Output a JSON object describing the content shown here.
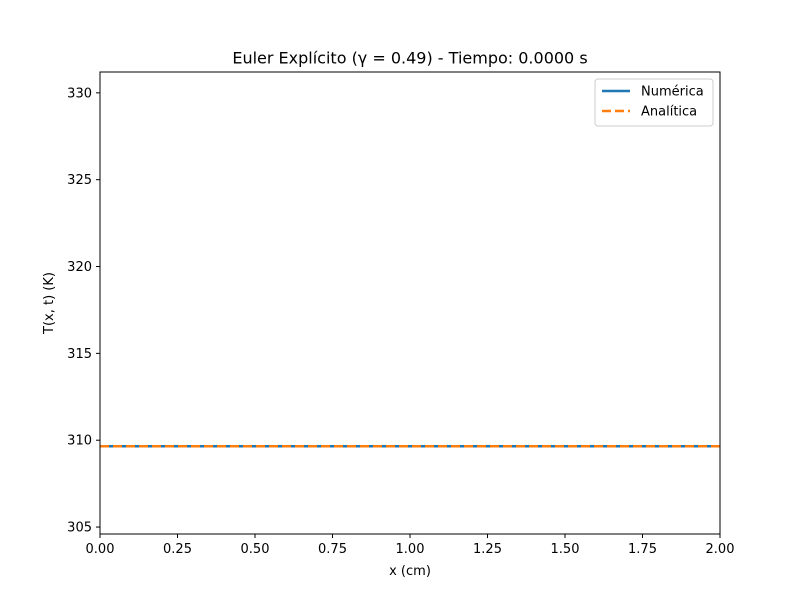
{
  "chart_data": {
    "type": "line",
    "title": "Euler Explícito (γ = 0.49) - Tiempo: 0.0000 s",
    "xlabel": "x (cm)",
    "ylabel": "T(x, t) (K)",
    "xlim": [
      0.0,
      2.0
    ],
    "ylim": [
      304.6,
      331.2
    ],
    "x_ticks": [
      0.0,
      0.25,
      0.5,
      0.75,
      1.0,
      1.25,
      1.5,
      1.75,
      2.0
    ],
    "x_tick_labels": [
      "0.00",
      "0.25",
      "0.50",
      "0.75",
      "1.00",
      "1.25",
      "1.50",
      "1.75",
      "2.00"
    ],
    "y_ticks": [
      305,
      310,
      315,
      320,
      325,
      330
    ],
    "y_tick_labels": [
      "305",
      "310",
      "315",
      "320",
      "325",
      "330"
    ],
    "grid": false,
    "legend_position": "top-right",
    "series": [
      {
        "name": "Numérica",
        "color": "#1f77b4",
        "style": "solid",
        "x": [
          0.0,
          0.5,
          1.0,
          1.5,
          2.0
        ],
        "y": [
          309.65,
          309.65,
          309.65,
          309.65,
          309.65
        ]
      },
      {
        "name": "Analítica",
        "color": "#ff7f0e",
        "style": "dashed",
        "x": [
          0.0,
          0.5,
          1.0,
          1.5,
          2.0
        ],
        "y": [
          309.65,
          309.65,
          309.65,
          309.65,
          309.65
        ]
      }
    ]
  }
}
